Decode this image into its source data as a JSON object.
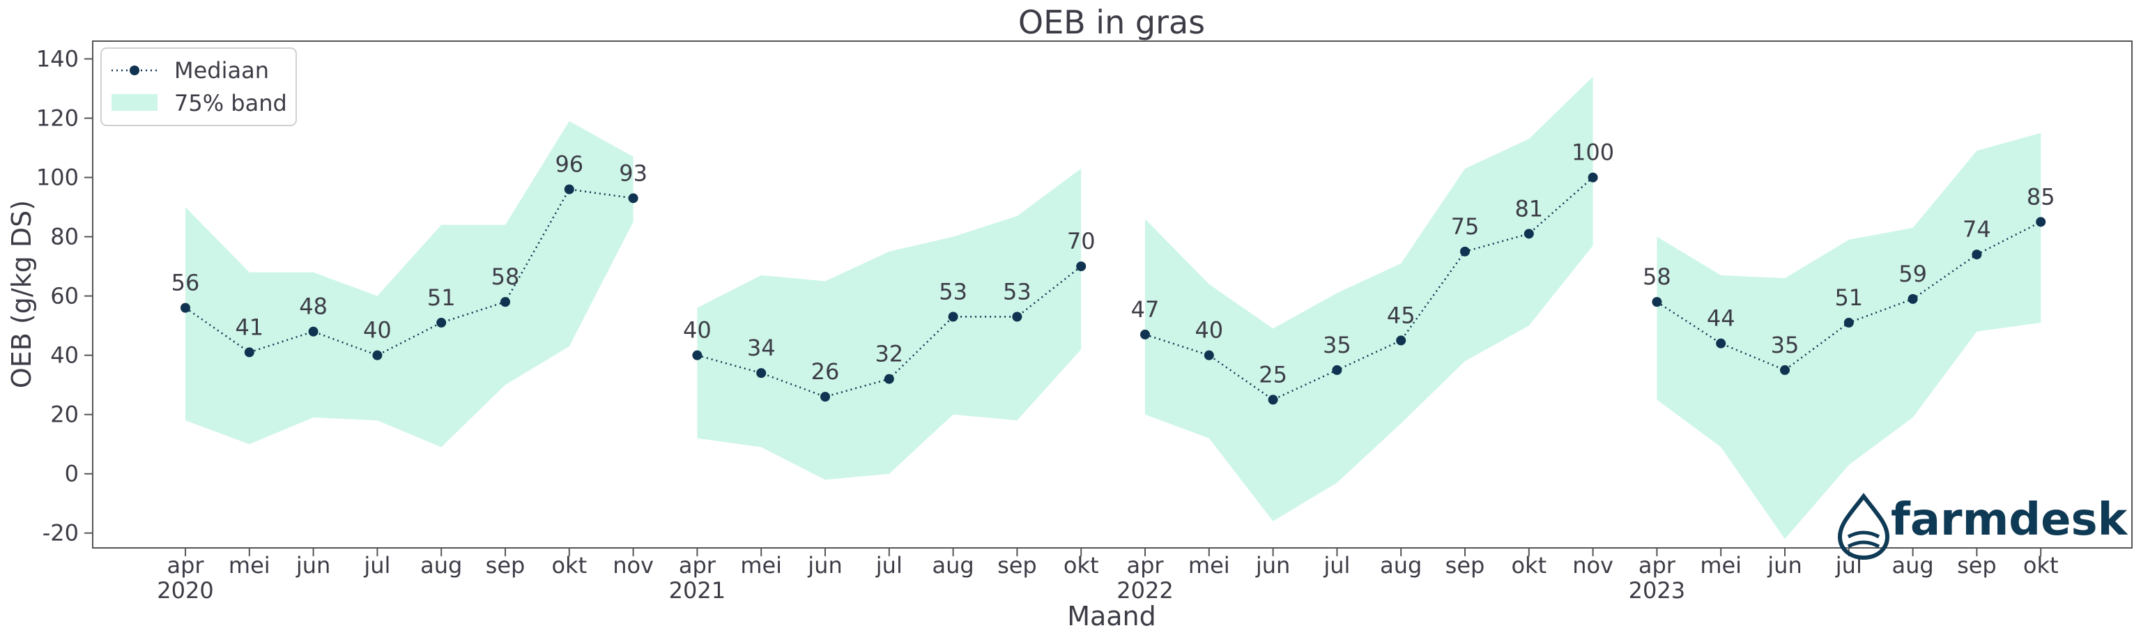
{
  "chart_data": {
    "type": "line",
    "title": "OEB in gras",
    "xlabel": "Maand",
    "ylabel": "OEB (g/kg DS)",
    "ylim": [
      -25,
      146
    ],
    "yticks": [
      -20,
      0,
      20,
      40,
      60,
      80,
      100,
      120,
      140
    ],
    "legend": {
      "position": "top-left",
      "entries": [
        "Mediaan",
        "75% band"
      ]
    },
    "colors": {
      "median": "#0f3350",
      "band": "#cdf6e8",
      "text": "#3c3c46",
      "frame": "#555555"
    },
    "segments": [
      {
        "year": "2020",
        "months": [
          "apr",
          "mei",
          "jun",
          "jul",
          "aug",
          "sep",
          "okt",
          "nov"
        ],
        "median": [
          56,
          41,
          48,
          40,
          51,
          58,
          96,
          93
        ],
        "band_low": [
          18,
          10,
          19,
          18,
          9,
          30,
          43,
          85
        ],
        "band_high": [
          90,
          68,
          68,
          60,
          84,
          84,
          119,
          107
        ]
      },
      {
        "year": "2021",
        "months": [
          "apr",
          "mei",
          "jun",
          "jul",
          "aug",
          "sep",
          "okt"
        ],
        "median": [
          40,
          34,
          26,
          32,
          53,
          53,
          70
        ],
        "band_low": [
          12,
          9,
          -2,
          0,
          20,
          18,
          42
        ],
        "band_high": [
          56,
          67,
          65,
          75,
          80,
          87,
          103
        ]
      },
      {
        "year": "2022",
        "months": [
          "apr",
          "mei",
          "jun",
          "jul",
          "aug",
          "sep",
          "okt",
          "nov"
        ],
        "median": [
          47,
          40,
          25,
          35,
          45,
          75,
          81,
          100
        ],
        "band_low": [
          20,
          12,
          -16,
          -3,
          17,
          38,
          50,
          77
        ],
        "band_high": [
          86,
          64,
          49,
          61,
          71,
          103,
          113,
          134
        ]
      },
      {
        "year": "2023",
        "months": [
          "apr",
          "mei",
          "jun",
          "jul",
          "aug",
          "sep",
          "okt"
        ],
        "median": [
          58,
          44,
          35,
          51,
          59,
          74,
          85
        ],
        "band_low": [
          25,
          9,
          -22,
          3,
          19,
          48,
          51
        ],
        "band_high": [
          80,
          67,
          66,
          79,
          83,
          109,
          115
        ]
      }
    ]
  },
  "logo": {
    "text": "farmdesk"
  }
}
